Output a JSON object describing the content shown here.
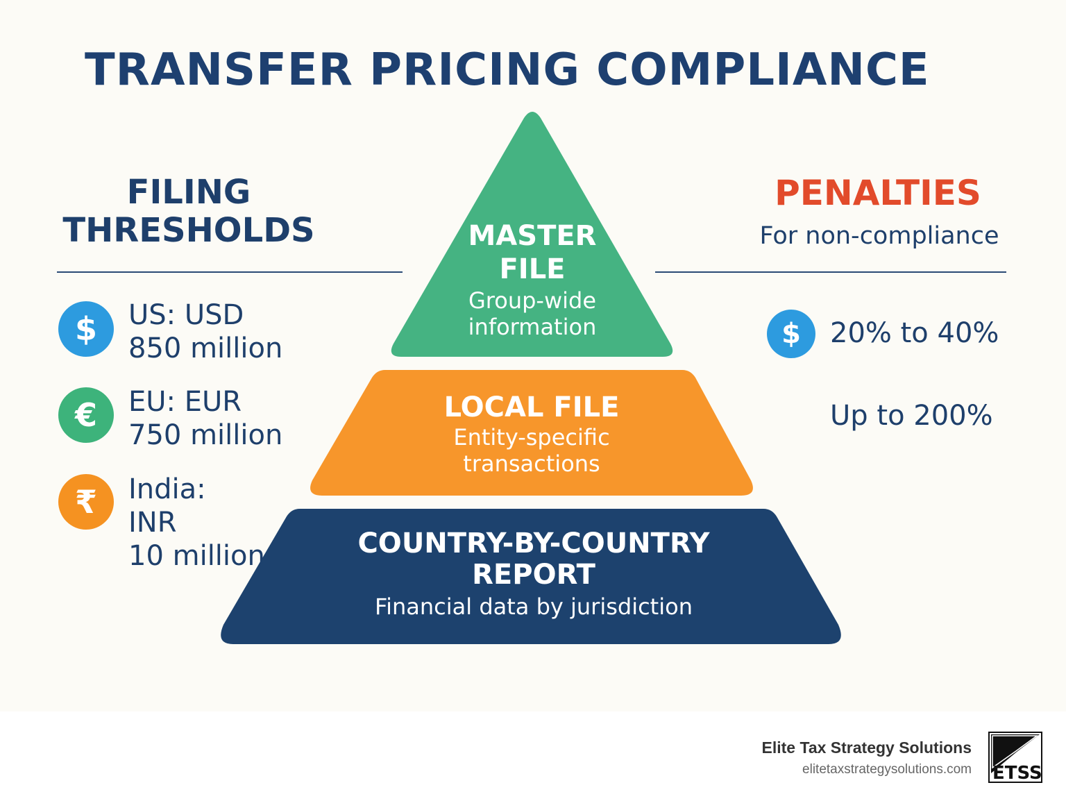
{
  "title": "TRANSFER PRICING COMPLIANCE",
  "thresholds": {
    "heading": "FILING THRESHOLDS",
    "items": [
      {
        "icon": "dollar-icon",
        "symbol": "$",
        "color": "#2d9bdf",
        "lines": [
          "US: USD",
          "850 million"
        ]
      },
      {
        "icon": "euro-icon",
        "symbol": "€",
        "color": "#3db37b",
        "lines": [
          "EU: EUR",
          "750 million"
        ]
      },
      {
        "icon": "rupee-icon",
        "symbol": "₹",
        "color": "#f59221",
        "lines": [
          "India:",
          "INR",
          "10 million"
        ]
      }
    ]
  },
  "pyramid": {
    "tiers": [
      {
        "title_lines": [
          "MASTER",
          "FILE"
        ],
        "subtitle_lines": [
          "Group-wide",
          "information"
        ],
        "color": "#45b382"
      },
      {
        "title_lines": [
          "LOCAL FILE"
        ],
        "subtitle_lines": [
          "Entity-specific",
          "transactions"
        ],
        "color": "#f7962b"
      },
      {
        "title_lines": [
          "COUNTRY-BY-COUNTRY",
          "REPORT"
        ],
        "subtitle_lines": [
          "Financial data by jurisdiction"
        ],
        "color": "#1d426e"
      }
    ]
  },
  "penalties": {
    "heading": "PENALTIES",
    "subtitle": "For non-compliance",
    "items": [
      {
        "icon": "dollar-icon",
        "symbol": "$",
        "value": "20% to 40%"
      },
      {
        "value": "Up to 200%"
      }
    ]
  },
  "footer": {
    "company": "Elite Tax Strategy Solutions",
    "url": "elitetaxstrategysolutions.com",
    "logo_letters": "ETSS"
  },
  "colors": {
    "navy": "#1e3f6b",
    "penalty_red": "#e24b2b",
    "background": "#fcfbf6"
  }
}
